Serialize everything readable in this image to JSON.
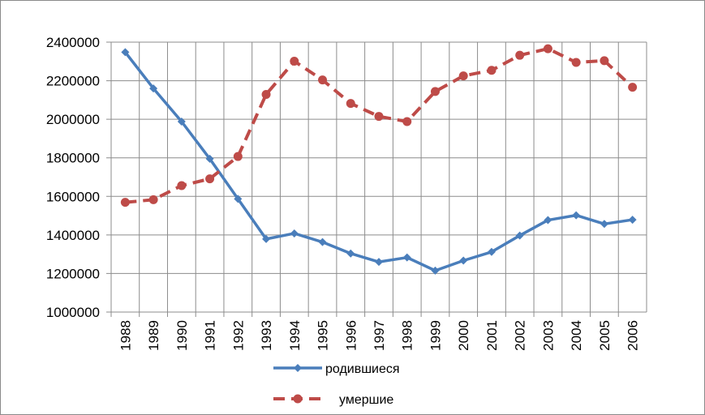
{
  "chart_data": {
    "type": "line",
    "title": "",
    "xlabel": "",
    "ylabel": "",
    "categories": [
      "1988",
      "1989",
      "1990",
      "1991",
      "1992",
      "1993",
      "1994",
      "1995",
      "1996",
      "1997",
      "1998",
      "1999",
      "2000",
      "2001",
      "2002",
      "2003",
      "2004",
      "2005",
      "2006"
    ],
    "ylim": [
      1000000,
      2400000
    ],
    "yticks": [
      "1000000",
      "1200000",
      "1400000",
      "1600000",
      "1800000",
      "2000000",
      "2200000",
      "2400000"
    ],
    "grid": true,
    "legend_position": "bottom",
    "series": [
      {
        "name": "родившиеся",
        "color": "#4a7ebb",
        "line_style": "solid",
        "marker": "diamond",
        "values": [
          2348000,
          2160000,
          1988000,
          1795000,
          1587000,
          1379000,
          1408000,
          1363000,
          1304000,
          1260000,
          1283000,
          1215000,
          1267000,
          1312000,
          1397000,
          1477000,
          1502000,
          1457000,
          1479000
        ]
      },
      {
        "name": "умершие",
        "color": "#be4b48",
        "line_style": "dashed",
        "marker": "circle",
        "values": [
          1569000,
          1583000,
          1656000,
          1691000,
          1807000,
          2129000,
          2301000,
          2204000,
          2082000,
          2015000,
          1988000,
          2144000,
          2225000,
          2254000,
          2332000,
          2366000,
          2295000,
          2304000,
          2166000
        ]
      }
    ]
  }
}
